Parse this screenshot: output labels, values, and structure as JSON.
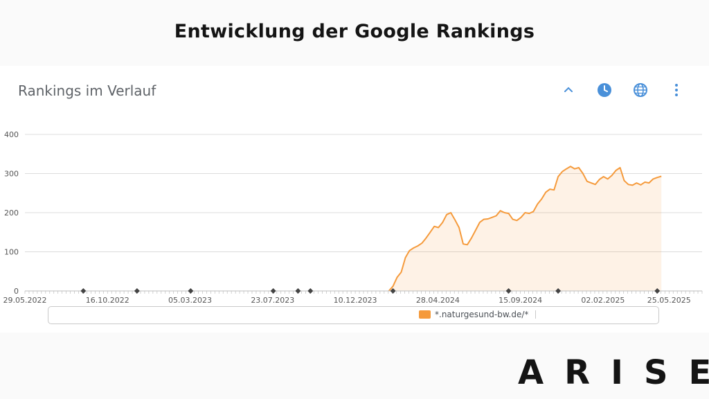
{
  "page": {
    "headline": "Entwicklung der Google Rankings",
    "brand": "ARISE"
  },
  "widget": {
    "title": "Rankings im Verlauf",
    "toolbar": [
      {
        "icon": "chevron-up-icon",
        "color": "#4a90d9"
      },
      {
        "icon": "clock-icon",
        "color": "#4a90d9"
      },
      {
        "icon": "globe-icon",
        "color": "#4a90d9"
      },
      {
        "icon": "more-vertical-icon",
        "color": "#4a90d9"
      }
    ]
  },
  "chart_data": {
    "type": "area",
    "title": "Rankings im Verlauf",
    "ylim": [
      0,
      400
    ],
    "yticks": [
      0,
      100,
      200,
      300,
      400
    ],
    "xlim": [
      "2022-05-29",
      "2025-07-20"
    ],
    "xticks": [
      "29.05.2022",
      "16.10.2022",
      "05.03.2023",
      "23.07.2023",
      "10.12.2023",
      "28.04.2024",
      "15.09.2024",
      "02.02.2025",
      "25.05.2025"
    ],
    "grid": true,
    "legend_position": "bottom",
    "series": [
      {
        "name": "*.naturgesund-bw.de/*",
        "color": "#f59a3b",
        "points": [
          [
            "2024-02-05",
            0
          ],
          [
            "2024-02-12",
            12
          ],
          [
            "2024-02-19",
            35
          ],
          [
            "2024-02-26",
            48
          ],
          [
            "2024-03-04",
            85
          ],
          [
            "2024-03-11",
            103
          ],
          [
            "2024-03-18",
            110
          ],
          [
            "2024-03-25",
            115
          ],
          [
            "2024-04-01",
            122
          ],
          [
            "2024-04-08",
            135
          ],
          [
            "2024-04-15",
            150
          ],
          [
            "2024-04-22",
            165
          ],
          [
            "2024-04-29",
            162
          ],
          [
            "2024-05-06",
            175
          ],
          [
            "2024-05-13",
            195
          ],
          [
            "2024-05-20",
            200
          ],
          [
            "2024-05-27",
            182
          ],
          [
            "2024-06-03",
            162
          ],
          [
            "2024-06-10",
            120
          ],
          [
            "2024-06-17",
            118
          ],
          [
            "2024-06-24",
            135
          ],
          [
            "2024-07-01",
            155
          ],
          [
            "2024-07-08",
            175
          ],
          [
            "2024-07-15",
            183
          ],
          [
            "2024-07-22",
            184
          ],
          [
            "2024-07-29",
            188
          ],
          [
            "2024-08-05",
            192
          ],
          [
            "2024-08-12",
            205
          ],
          [
            "2024-08-19",
            200
          ],
          [
            "2024-08-26",
            198
          ],
          [
            "2024-09-02",
            183
          ],
          [
            "2024-09-09",
            180
          ],
          [
            "2024-09-16",
            188
          ],
          [
            "2024-09-23",
            200
          ],
          [
            "2024-09-30",
            198
          ],
          [
            "2024-10-07",
            203
          ],
          [
            "2024-10-14",
            222
          ],
          [
            "2024-10-21",
            235
          ],
          [
            "2024-10-28",
            252
          ],
          [
            "2024-11-04",
            260
          ],
          [
            "2024-11-11",
            258
          ],
          [
            "2024-11-18",
            292
          ],
          [
            "2024-11-25",
            305
          ],
          [
            "2024-12-02",
            312
          ],
          [
            "2024-12-09",
            318
          ],
          [
            "2024-12-16",
            312
          ],
          [
            "2024-12-23",
            315
          ],
          [
            "2024-12-30",
            300
          ],
          [
            "2025-01-06",
            280
          ],
          [
            "2025-01-13",
            276
          ],
          [
            "2025-01-20",
            272
          ],
          [
            "2025-01-27",
            285
          ],
          [
            "2025-02-03",
            292
          ],
          [
            "2025-02-10",
            286
          ],
          [
            "2025-02-17",
            295
          ],
          [
            "2025-02-24",
            308
          ],
          [
            "2025-03-03",
            315
          ],
          [
            "2025-03-10",
            282
          ],
          [
            "2025-03-17",
            272
          ],
          [
            "2025-03-24",
            270
          ],
          [
            "2025-03-31",
            276
          ],
          [
            "2025-04-07",
            271
          ],
          [
            "2025-04-14",
            278
          ],
          [
            "2025-04-21",
            276
          ],
          [
            "2025-04-28",
            286
          ],
          [
            "2025-05-05",
            290
          ],
          [
            "2025-05-12",
            293
          ]
        ]
      }
    ],
    "markers": [
      "2022-09-05",
      "2022-12-05",
      "2023-03-06",
      "2023-07-24",
      "2023-09-04",
      "2023-09-25",
      "2024-02-12",
      "2024-08-26",
      "2024-11-18",
      "2025-05-05"
    ]
  }
}
